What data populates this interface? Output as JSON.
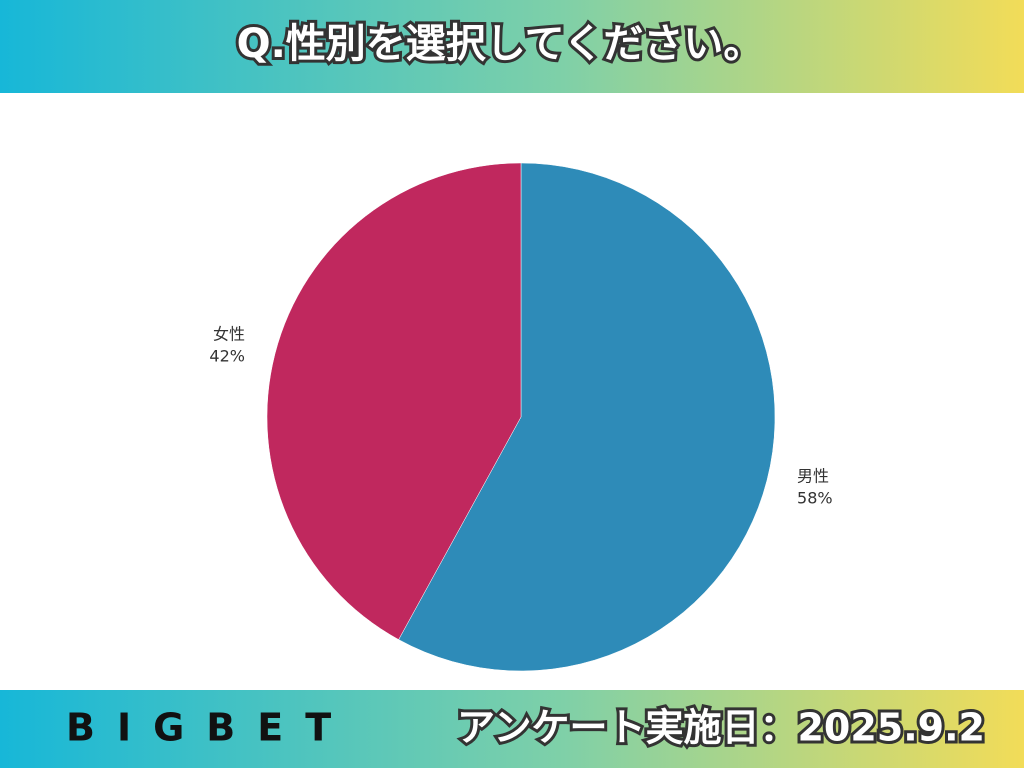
{
  "header": {
    "title": "Q.性別を選択してください。"
  },
  "chart_data": {
    "type": "pie",
    "categories": [
      "男性",
      "女性"
    ],
    "values": [
      58,
      42
    ],
    "value_labels": [
      "58%",
      "42%"
    ],
    "colors": [
      "#2e8bb8",
      "#c0285e"
    ]
  },
  "footer": {
    "logo": "BIGBET",
    "date": "アンケート実施日：2025.9.2"
  }
}
